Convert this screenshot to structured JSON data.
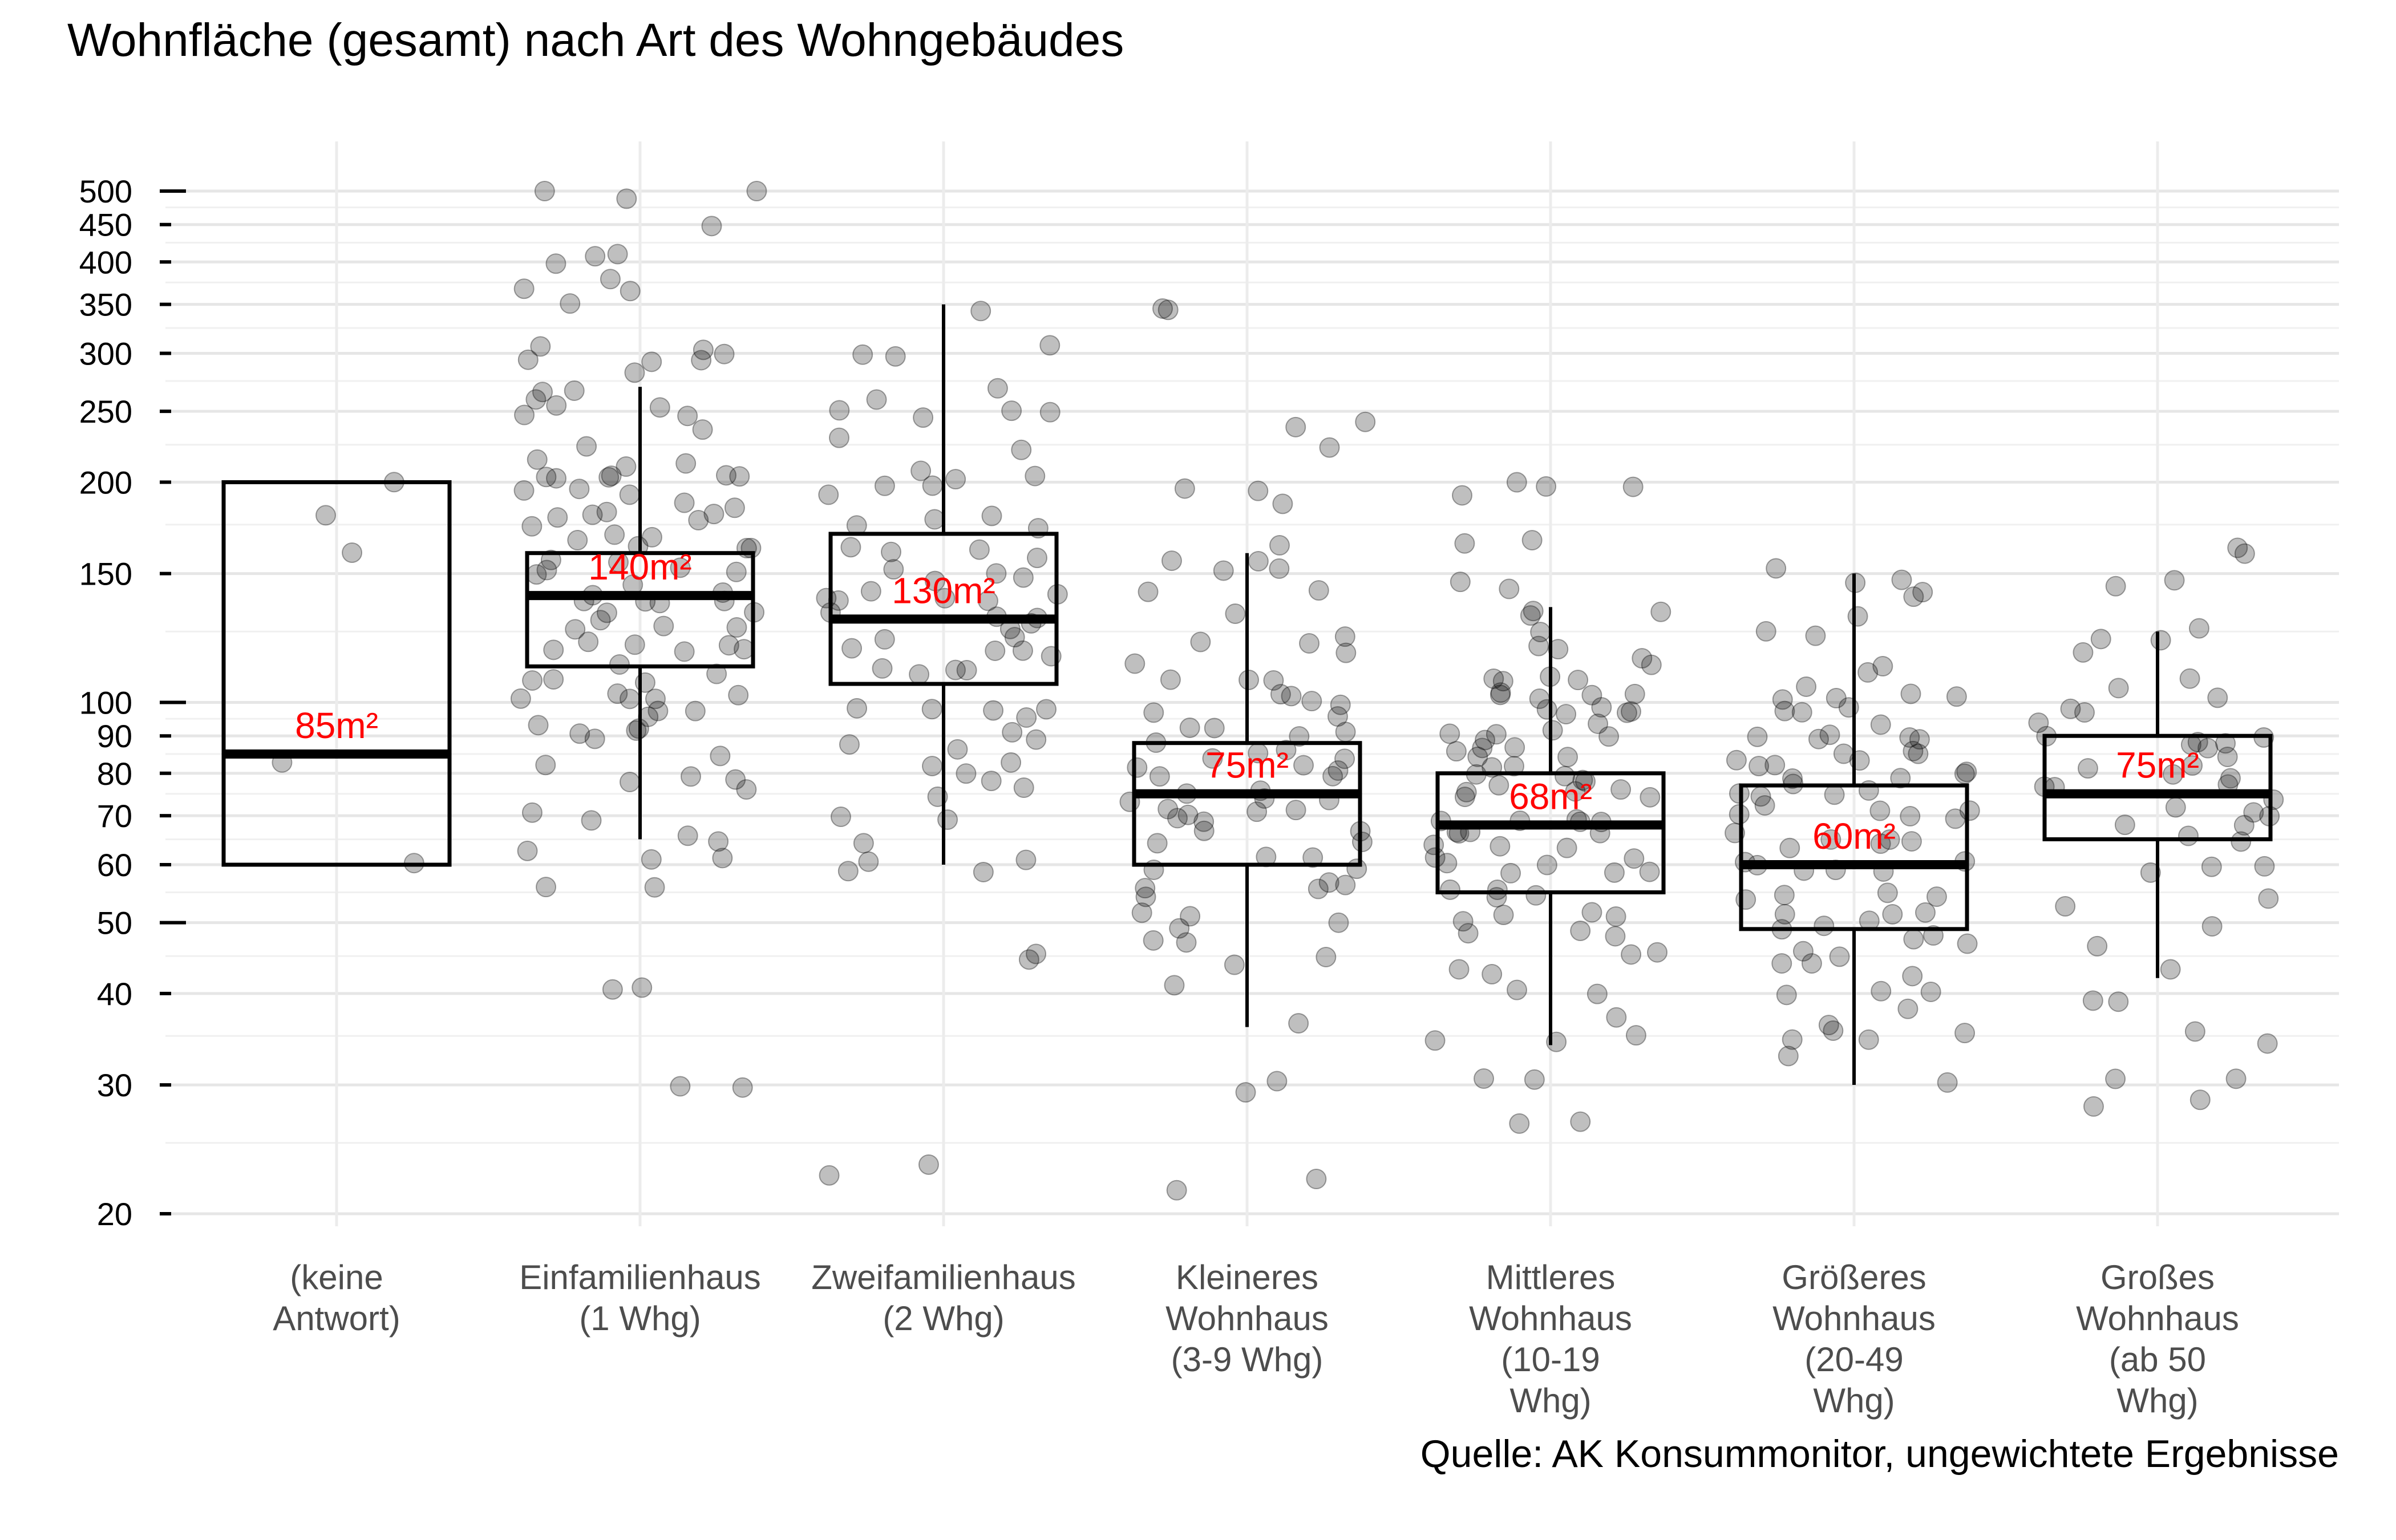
{
  "title": "Wohnfläche (gesamt) nach Art des Wohngebäudes",
  "caption": "Quelle: AK Konsummonitor, ungewichtete Ergebnisse",
  "chart_data": {
    "type": "boxplot",
    "title": "Wohnfläche (gesamt) nach Art des Wohngebäudes",
    "xlabel": "",
    "ylabel": "",
    "y_scale": "log",
    "ylim": [
      20,
      500
    ],
    "y_ticks": [
      20,
      30,
      40,
      50,
      60,
      70,
      80,
      90,
      100,
      150,
      200,
      250,
      300,
      350,
      400,
      450,
      500
    ],
    "y_ticks_emphasized": [
      50,
      100,
      500
    ],
    "grid": true,
    "point_color": "#000000",
    "point_opacity": 0.25,
    "box_color": "#000000",
    "median_label_color": "#ff0000",
    "categories": [
      {
        "label": [
          "(keine",
          "Antwort)"
        ],
        "min": 60,
        "q1": 60,
        "median": 85,
        "q3": 200,
        "max": 200,
        "median_label": "85m²",
        "points": [
          200,
          160,
          180,
          85,
          60
        ]
      },
      {
        "label": [
          "Einfamilienhaus",
          "(1 Whg)"
        ],
        "min": 65,
        "q1": 112,
        "median": 140,
        "q3": 160,
        "max": 270,
        "median_label": "140m²",
        "points": [
          500,
          500,
          500,
          450,
          420,
          400,
          400,
          380,
          370,
          360,
          350,
          300,
          300,
          300,
          300,
          300,
          300,
          280,
          270,
          260,
          260,
          250,
          250,
          250,
          240,
          240,
          230,
          220,
          210,
          210,
          200,
          200,
          200,
          200,
          200,
          200,
          200,
          200,
          190,
          190,
          180,
          180,
          180,
          180,
          180,
          180,
          170,
          170,
          170,
          165,
          160,
          160,
          160,
          160,
          155,
          150,
          150,
          150,
          150,
          145,
          140,
          140,
          140,
          140,
          140,
          135,
          130,
          130,
          130,
          130,
          130,
          125,
          120,
          120,
          120,
          120,
          120,
          115,
          110,
          110,
          110,
          110,
          105,
          100,
          100,
          100,
          100,
          100,
          100,
          100,
          95,
          95,
          90,
          90,
          90,
          90,
          85,
          80,
          80,
          80,
          80,
          75,
          70,
          70,
          65,
          65,
          62,
          60,
          60,
          55,
          55,
          41,
          41,
          30,
          30
        ]
      },
      {
        "label": [
          "Zweifamilienhaus",
          "(2 Whg)"
        ],
        "min": 60,
        "q1": 106,
        "median": 130,
        "q3": 170,
        "max": 350,
        "median_label": "130m²",
        "points": [
          350,
          300,
          300,
          300,
          270,
          260,
          250,
          250,
          245,
          240,
          230,
          220,
          210,
          200,
          200,
          200,
          200,
          190,
          180,
          180,
          175,
          170,
          160,
          160,
          160,
          160,
          150,
          150,
          150,
          150,
          145,
          140,
          140,
          140,
          140,
          140,
          135,
          130,
          130,
          130,
          125,
          120,
          120,
          120,
          120,
          120,
          115,
          110,
          110,
          110,
          110,
          100,
          100,
          100,
          100,
          95,
          90,
          90,
          90,
          85,
          85,
          80,
          80,
          80,
          75,
          75,
          70,
          70,
          65,
          60,
          60,
          60,
          60,
          45,
          45,
          23,
          23
        ]
      },
      {
        "label": [
          "Kleineres",
          "Wohnhaus",
          "(3-9 Whg)"
        ],
        "min": 36,
        "q1": 60,
        "median": 75,
        "q3": 88,
        "max": 160,
        "median_label": "75m²",
        "points": [
          350,
          350,
          240,
          240,
          220,
          200,
          200,
          190,
          160,
          160,
          155,
          150,
          150,
          140,
          140,
          130,
          125,
          120,
          120,
          115,
          110,
          110,
          110,
          105,
          100,
          100,
          100,
          100,
          95,
          95,
          90,
          90,
          90,
          90,
          90,
          85,
          85,
          85,
          85,
          80,
          80,
          80,
          80,
          80,
          75,
          75,
          75,
          75,
          75,
          70,
          70,
          70,
          70,
          70,
          70,
          65,
          65,
          65,
          65,
          60,
          60,
          60,
          60,
          58,
          55,
          55,
          55,
          55,
          52,
          50,
          50,
          50,
          48,
          47,
          45,
          45,
          40,
          36,
          30,
          30,
          22,
          22
        ]
      },
      {
        "label": [
          "Mittleres",
          "Wohnhaus",
          "(10-19",
          "Whg)"
        ],
        "min": 34,
        "q1": 55,
        "median": 68,
        "q3": 80,
        "max": 135,
        "median_label": "68m²",
        "points": [
          200,
          200,
          200,
          190,
          165,
          165,
          150,
          140,
          135,
          130,
          130,
          125,
          120,
          120,
          115,
          115,
          110,
          110,
          110,
          105,
          105,
          100,
          100,
          100,
          100,
          100,
          100,
          95,
          95,
          95,
          95,
          90,
          90,
          90,
          90,
          90,
          85,
          85,
          85,
          85,
          85,
          80,
          80,
          80,
          80,
          80,
          80,
          75,
          75,
          75,
          75,
          75,
          75,
          70,
          70,
          70,
          70,
          70,
          68,
          68,
          65,
          65,
          65,
          65,
          65,
          62,
          60,
          60,
          60,
          60,
          60,
          58,
          55,
          55,
          55,
          55,
          52,
          50,
          50,
          50,
          50,
          48,
          48,
          45,
          45,
          42,
          42,
          40,
          40,
          37,
          35,
          35,
          35,
          30,
          30,
          26,
          26
        ]
      },
      {
        "label": [
          "Größeres",
          "Wohnhaus",
          "(20-49",
          "Whg)"
        ],
        "min": 30,
        "q1": 49,
        "median": 60,
        "q3": 77,
        "max": 150,
        "median_label": "60m²",
        "points": [
          150,
          150,
          145,
          145,
          140,
          130,
          125,
          120,
          115,
          110,
          105,
          100,
          100,
          100,
          100,
          100,
          95,
          95,
          95,
          90,
          90,
          90,
          90,
          88,
          85,
          85,
          85,
          85,
          82,
          80,
          80,
          80,
          80,
          80,
          80,
          78,
          75,
          75,
          75,
          75,
          72,
          70,
          70,
          70,
          70,
          68,
          65,
          65,
          65,
          65,
          65,
          62,
          60,
          60,
          60,
          60,
          60,
          58,
          55,
          55,
          55,
          55,
          52,
          50,
          50,
          50,
          50,
          50,
          48,
          47,
          46,
          45,
          45,
          45,
          43,
          42,
          40,
          40,
          40,
          38,
          37,
          35,
          35,
          35,
          35,
          32,
          30
        ]
      },
      {
        "label": [
          "Großes",
          "Wohnhaus",
          "(ab 50",
          "Whg)"
        ],
        "min": 42,
        "q1": 65,
        "median": 75,
        "q3": 90,
        "max": 125,
        "median_label": "75m²",
        "points": [
          160,
          160,
          150,
          148,
          125,
          124,
          120,
          115,
          110,
          105,
          100,
          100,
          95,
          95,
          92,
          90,
          90,
          90,
          88,
          85,
          85,
          80,
          80,
          80,
          80,
          78,
          75,
          75,
          75,
          72,
          70,
          70,
          68,
          67,
          65,
          63,
          61,
          61,
          59,
          55,
          53,
          50,
          47,
          42,
          39,
          39,
          35,
          35,
          30,
          30,
          28,
          28
        ]
      }
    ]
  }
}
